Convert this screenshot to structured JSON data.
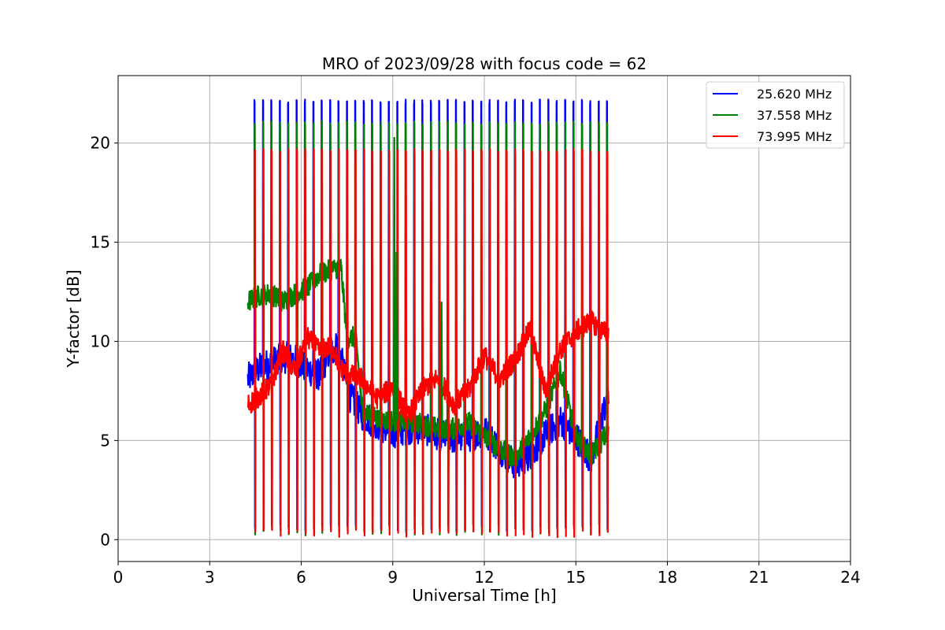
{
  "chart_data": {
    "type": "line",
    "title": "MRO of 2023/09/28 with focus code = 62",
    "xlabel": "Universal Time [h]",
    "ylabel": "Y-factor [dB]",
    "xlim": [
      0,
      24
    ],
    "ylim": [
      -1.1,
      23.4
    ],
    "xticks": [
      0,
      3,
      6,
      9,
      12,
      15,
      18,
      21,
      24
    ],
    "yticks": [
      0,
      5,
      10,
      15,
      20
    ],
    "grid": true,
    "legend_position": "top-right",
    "series": [
      {
        "name": "25.620 MHz",
        "color": "#0000ff",
        "peak": 22.1,
        "dip": 0.4,
        "baseline": [
          [
            4.25,
            8.1
          ],
          [
            4.6,
            8.6
          ],
          [
            5.0,
            8.9
          ],
          [
            5.5,
            9.2
          ],
          [
            5.9,
            9.0
          ],
          [
            6.2,
            8.6
          ],
          [
            6.6,
            8.3
          ],
          [
            6.9,
            9.4
          ],
          [
            7.2,
            9.8
          ],
          [
            7.6,
            7.2
          ],
          [
            8.0,
            6.3
          ],
          [
            8.5,
            5.8
          ],
          [
            9.0,
            5.4
          ],
          [
            9.5,
            5.6
          ],
          [
            10.0,
            5.6
          ],
          [
            10.5,
            5.3
          ],
          [
            11.0,
            5.1
          ],
          [
            11.5,
            5.2
          ],
          [
            12.0,
            5.5
          ],
          [
            12.5,
            4.6
          ],
          [
            13.0,
            3.8
          ],
          [
            13.5,
            4.3
          ],
          [
            14.0,
            5.3
          ],
          [
            14.5,
            6.0
          ],
          [
            15.0,
            5.2
          ],
          [
            15.5,
            4.1
          ],
          [
            16.0,
            7.0
          ]
        ]
      },
      {
        "name": "37.558 MHz",
        "color": "#008000",
        "peak": 21.0,
        "dip": 0.2,
        "baseline": [
          [
            4.25,
            12.0
          ],
          [
            4.6,
            12.3
          ],
          [
            5.0,
            12.4
          ],
          [
            5.4,
            12.0
          ],
          [
            5.8,
            12.4
          ],
          [
            6.2,
            12.7
          ],
          [
            6.6,
            13.4
          ],
          [
            7.0,
            13.6
          ],
          [
            7.3,
            13.8
          ],
          [
            7.5,
            10.2
          ],
          [
            7.8,
            10.2
          ],
          [
            8.0,
            6.4
          ],
          [
            8.5,
            6.1
          ],
          [
            9.0,
            6.0
          ],
          [
            9.5,
            6.0
          ],
          [
            10.0,
            5.8
          ],
          [
            10.5,
            5.6
          ],
          [
            11.0,
            5.6
          ],
          [
            11.5,
            5.9
          ],
          [
            12.0,
            5.2
          ],
          [
            12.5,
            4.6
          ],
          [
            13.0,
            4.1
          ],
          [
            13.5,
            5.2
          ],
          [
            14.0,
            6.5
          ],
          [
            14.5,
            8.5
          ],
          [
            15.0,
            5.2
          ],
          [
            15.5,
            4.2
          ],
          [
            16.0,
            5.3
          ]
        ]
      },
      {
        "name": "73.995 MHz",
        "color": "#ff0000",
        "peak": 19.6,
        "dip": 0.1,
        "baseline": [
          [
            4.25,
            6.8
          ],
          [
            4.6,
            7.2
          ],
          [
            5.0,
            7.8
          ],
          [
            5.4,
            9.5
          ],
          [
            5.8,
            8.5
          ],
          [
            6.2,
            10.2
          ],
          [
            6.6,
            9.5
          ],
          [
            7.0,
            9.8
          ],
          [
            7.3,
            8.6
          ],
          [
            7.6,
            8.3
          ],
          [
            8.0,
            8.1
          ],
          [
            8.5,
            7.1
          ],
          [
            9.0,
            7.7
          ],
          [
            9.5,
            6.2
          ],
          [
            10.0,
            7.6
          ],
          [
            10.5,
            8.2
          ],
          [
            11.0,
            6.8
          ],
          [
            11.5,
            7.6
          ],
          [
            12.0,
            9.3
          ],
          [
            12.5,
            8.1
          ],
          [
            13.0,
            9.1
          ],
          [
            13.5,
            10.6
          ],
          [
            14.0,
            7.5
          ],
          [
            14.5,
            9.6
          ],
          [
            15.0,
            10.5
          ],
          [
            15.5,
            11.0
          ],
          [
            16.0,
            10.4
          ]
        ]
      }
    ],
    "pulse_times": [
      4.47,
      4.75,
      5.02,
      5.3,
      5.57,
      5.85,
      6.12,
      6.4,
      6.67,
      6.95,
      7.22,
      7.5,
      7.77,
      8.05,
      8.32,
      8.6,
      8.87,
      9.15,
      9.42,
      9.7,
      9.97,
      10.25,
      10.52,
      10.8,
      11.07,
      11.35,
      11.62,
      11.9,
      12.17,
      12.45,
      12.72,
      13.0,
      13.27,
      13.55,
      13.82,
      14.1,
      14.37,
      14.65,
      14.92,
      15.2,
      15.47,
      15.75,
      16.02
    ],
    "spikes": [
      {
        "series": "37.558 MHz",
        "x": 9.05,
        "y": 20.3
      },
      {
        "series": "37.558 MHz",
        "x": 9.12,
        "y": 14.5
      },
      {
        "series": "37.558 MHz",
        "x": 10.6,
        "y": 12.0
      }
    ]
  }
}
